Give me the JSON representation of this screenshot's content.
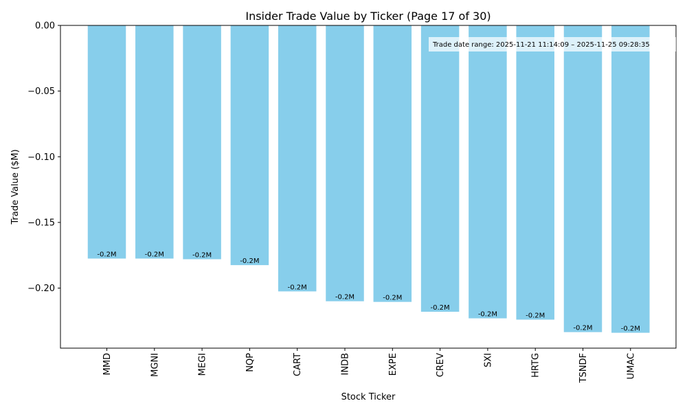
{
  "chart_data": {
    "type": "bar",
    "title": "Insider Trade Value by Ticker (Page 17 of 30)",
    "xlabel": "Stock Ticker",
    "ylabel": "Trade Value ($M)",
    "categories": [
      "MMD",
      "MGNI",
      "MEGI",
      "NQP",
      "CART",
      "INDB",
      "EXPE",
      "CREV",
      "SXI",
      "HRTG",
      "TSNDF",
      "UMAC"
    ],
    "values": [
      -0.1775,
      -0.1775,
      -0.178,
      -0.1825,
      -0.2025,
      -0.21,
      -0.2105,
      -0.218,
      -0.223,
      -0.224,
      -0.2335,
      -0.234
    ],
    "data_labels": [
      "-0.2M",
      "-0.2M",
      "-0.2M",
      "-0.2M",
      "-0.2M",
      "-0.2M",
      "-0.2M",
      "-0.2M",
      "-0.2M",
      "-0.2M",
      "-0.2M",
      "-0.2M"
    ],
    "yticks": [
      0.0,
      -0.05,
      -0.1,
      -0.15,
      -0.2
    ],
    "ytick_labels": [
      "0.00",
      "−0.05",
      "−0.10",
      "−0.15",
      "−0.20"
    ],
    "ylim": [
      -0.2457,
      0.0
    ],
    "grid": false,
    "bar_color": "#87CEEB",
    "annotation": "Trade date range: 2025-11-21 11:14:09 – 2025-11-25 09:28:35"
  }
}
